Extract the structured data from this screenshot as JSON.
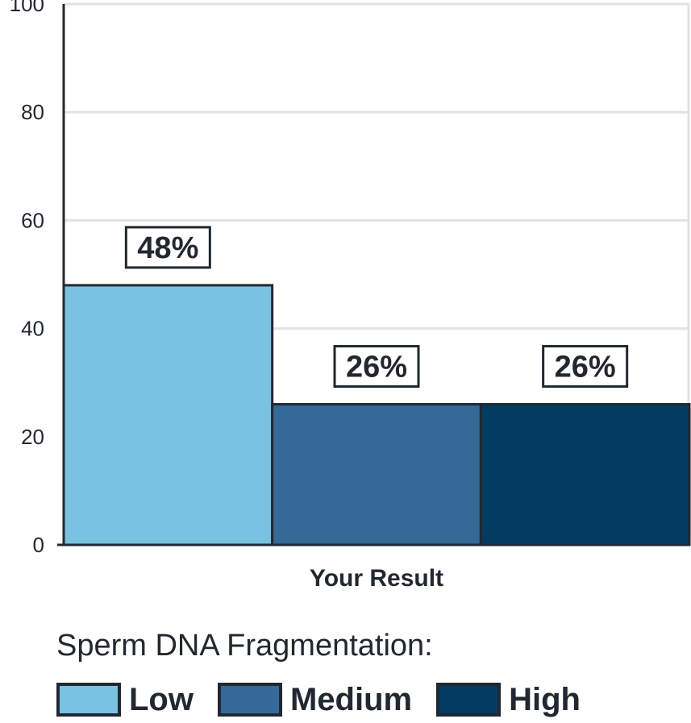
{
  "chart_data": {
    "type": "bar",
    "categories": [
      "Low",
      "Medium",
      "High"
    ],
    "values": [
      48,
      26,
      26
    ],
    "data_labels": [
      "48%",
      "26%",
      "26%"
    ],
    "colors": [
      "#7ac2e1",
      "#356a98",
      "#033c62"
    ],
    "xlabel": "Your Result",
    "ylabel": "",
    "ylim": [
      0,
      100
    ],
    "yticks": [
      "0",
      "20",
      "40",
      "60",
      "80",
      "100"
    ],
    "grid": true,
    "legend": {
      "title": "Sperm DNA Fragmentation:",
      "position": "bottom",
      "items": [
        {
          "label": "Low",
          "color": "#7ac2e1"
        },
        {
          "label": "Medium",
          "color": "#356a98"
        },
        {
          "label": "High",
          "color": "#033c62"
        }
      ]
    }
  }
}
